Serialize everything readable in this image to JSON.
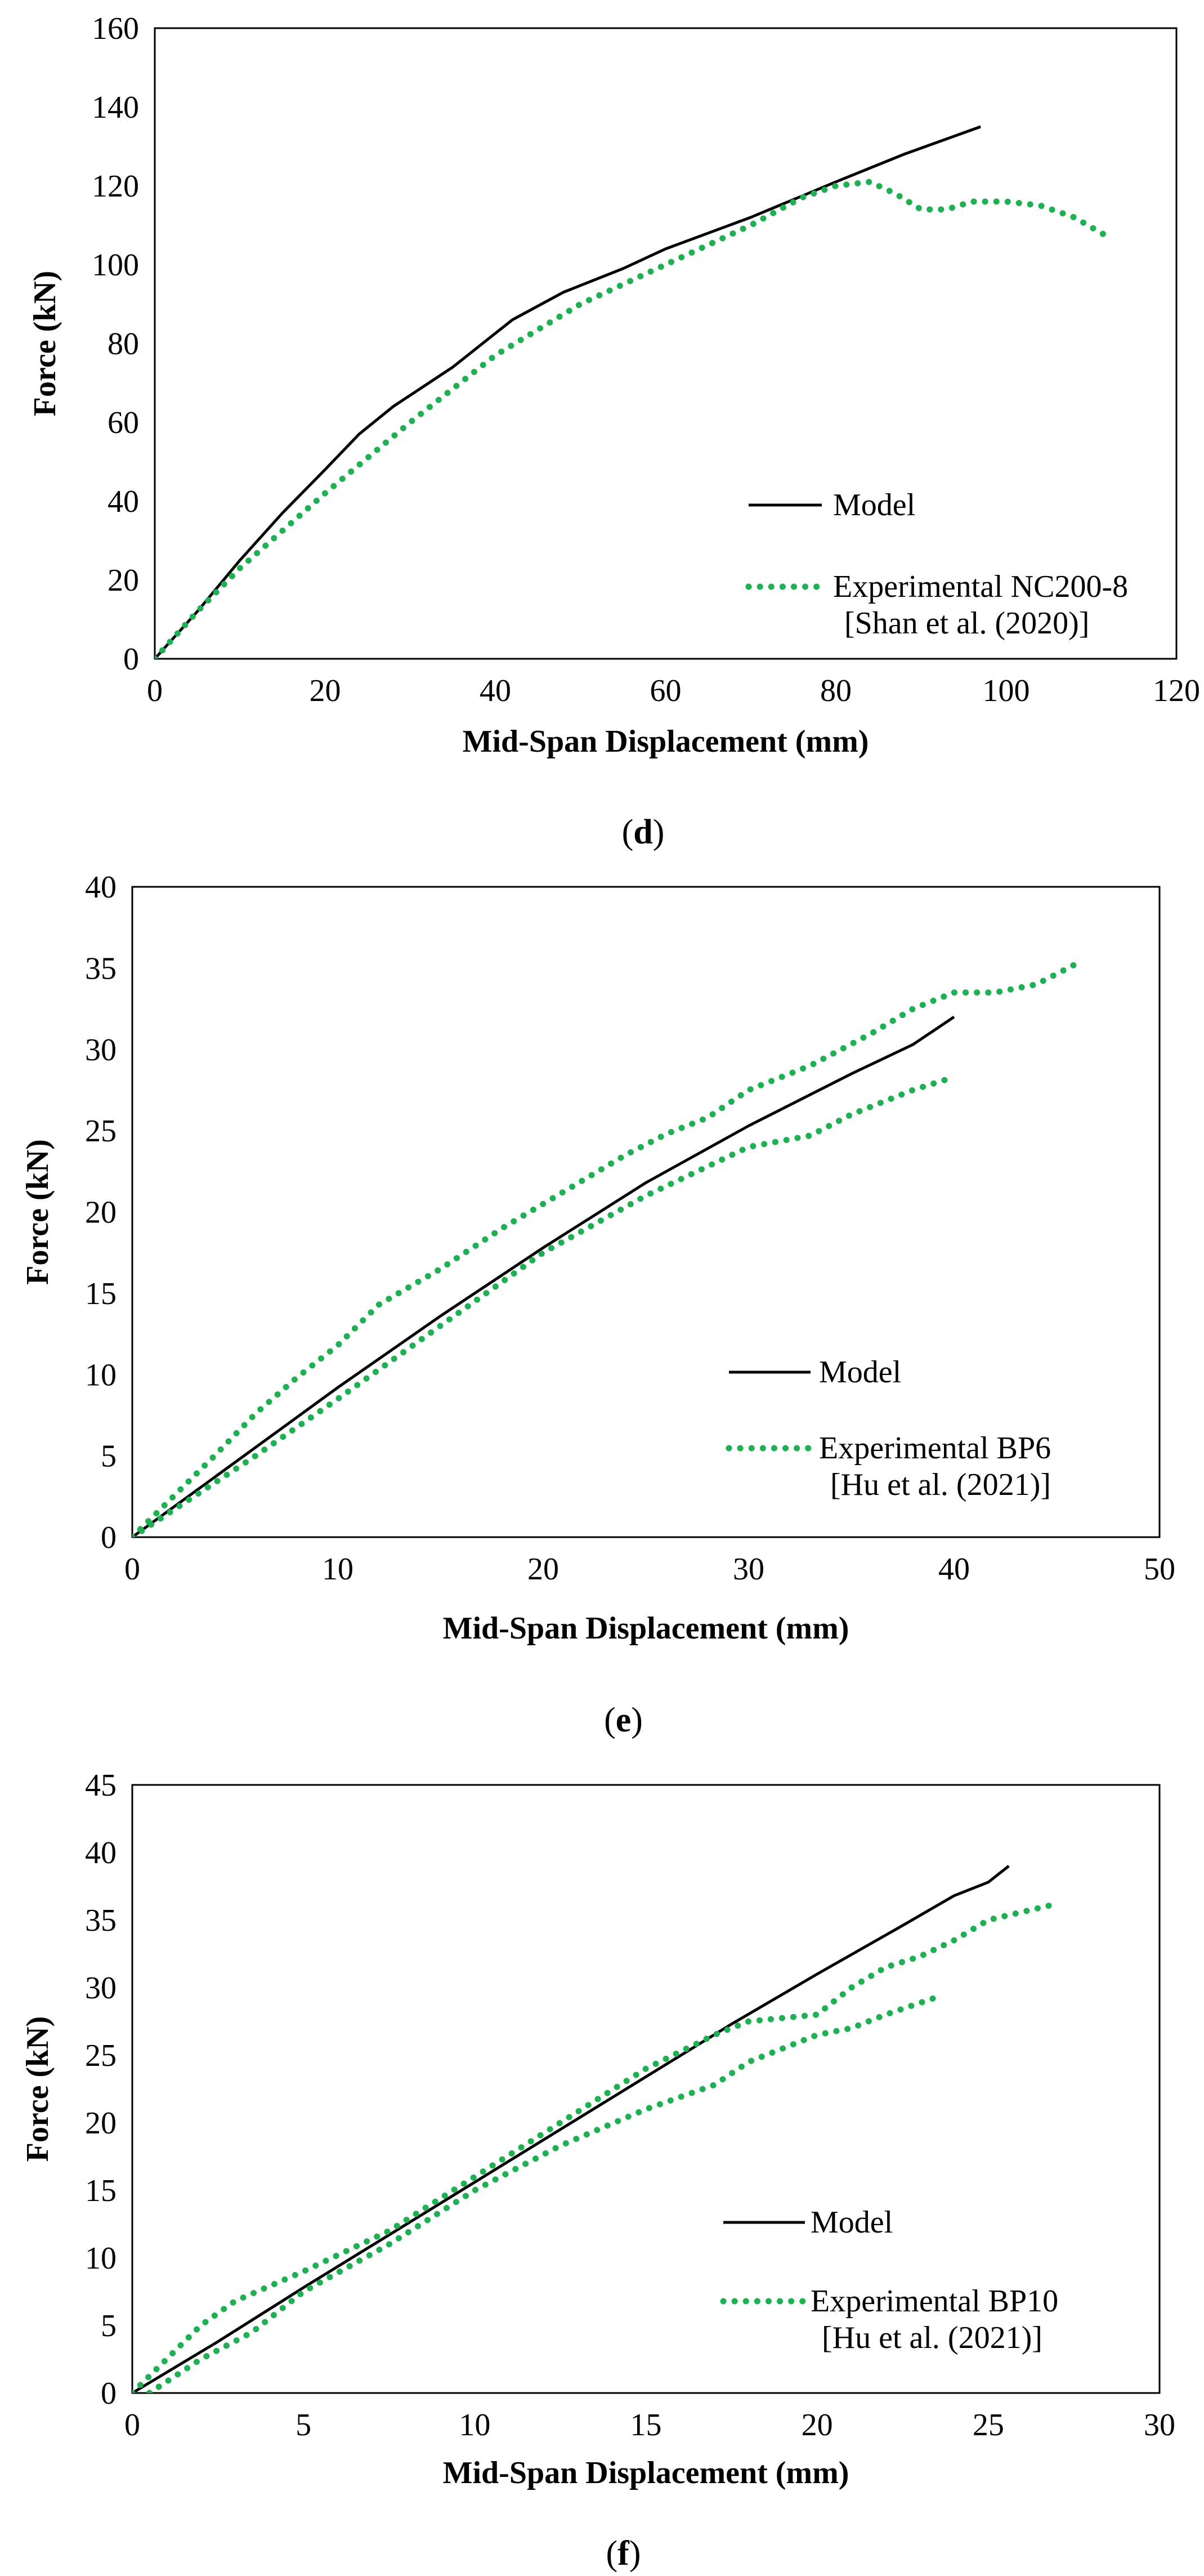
{
  "colors": {
    "model": "#000000",
    "experimental": "#1eb052",
    "frame": "#000000"
  },
  "chart_data": [
    {
      "type": "line",
      "caption_pre": "(",
      "caption_letter": "d",
      "caption_post": ")",
      "xlabel": "Mid-Span Displacement (mm)",
      "ylabel": "Force (kN)",
      "xlim": [
        0,
        120
      ],
      "ylim": [
        0,
        160
      ],
      "xticks": [
        0,
        20,
        40,
        60,
        80,
        100,
        120
      ],
      "yticks": [
        0,
        20,
        40,
        60,
        80,
        100,
        120,
        140,
        160
      ],
      "legend_placement": "lower-right",
      "series": [
        {
          "name": "Model",
          "legend_lines": [
            "Model"
          ],
          "style": "solid",
          "points": [
            [
              0,
              0
            ],
            [
              5,
              12
            ],
            [
              10,
              25
            ],
            [
              15,
              37
            ],
            [
              20,
              48
            ],
            [
              24,
              57
            ],
            [
              28,
              64
            ],
            [
              35,
              74
            ],
            [
              42,
              86
            ],
            [
              48,
              93
            ],
            [
              55,
              99
            ],
            [
              60,
              104
            ],
            [
              70,
              112
            ],
            [
              80,
              121
            ],
            [
              88,
              128
            ],
            [
              97,
              135
            ]
          ]
        },
        {
          "name": "Experimental NC200-8",
          "legend_lines": [
            "Experimental NC200-8",
            "[Shan et al. (2020)]"
          ],
          "style": "dotted",
          "points": [
            [
              0,
              0
            ],
            [
              5,
              12
            ],
            [
              10,
              23
            ],
            [
              20,
              42
            ],
            [
              30,
              60
            ],
            [
              40,
              77
            ],
            [
              50,
              90
            ],
            [
              60,
              100
            ],
            [
              70,
              110
            ],
            [
              76,
              117
            ],
            [
              80,
              120
            ],
            [
              84,
              121
            ],
            [
              87,
              118
            ],
            [
              90,
              114
            ],
            [
              93,
              114
            ],
            [
              96,
              116
            ],
            [
              100,
              116
            ],
            [
              104,
              115
            ],
            [
              108,
              112
            ],
            [
              112,
              107
            ]
          ]
        }
      ]
    },
    {
      "type": "line",
      "caption_pre": "(",
      "caption_letter": "e",
      "caption_post": ")",
      "xlabel": "Mid-Span Displacement (mm)",
      "ylabel": "Force (kN)",
      "xlim": [
        0,
        50
      ],
      "ylim": [
        0,
        40
      ],
      "xticks": [
        0,
        10,
        20,
        30,
        40,
        50
      ],
      "yticks": [
        0,
        5,
        10,
        15,
        20,
        25,
        30,
        35,
        40
      ],
      "legend_placement": "lower-right",
      "series": [
        {
          "name": "Model",
          "legend_lines": [
            "Model"
          ],
          "style": "solid",
          "points": [
            [
              0,
              0
            ],
            [
              5,
              4.6
            ],
            [
              10,
              9.2
            ],
            [
              15,
              13.6
            ],
            [
              20,
              17.8
            ],
            [
              25,
              21.8
            ],
            [
              30,
              25.3
            ],
            [
              35,
              28.5
            ],
            [
              38,
              30.3
            ],
            [
              40,
              32
            ]
          ]
        },
        {
          "name": "Experimental BP6",
          "legend_lines": [
            "Experimental BP6",
            "[Hu et al. (2021)]"
          ],
          "style": "dotted",
          "points": [
            [
              0,
              0
            ],
            [
              2,
              2.5
            ],
            [
              4,
              5
            ],
            [
              6,
              7.6
            ],
            [
              8,
              9.8
            ],
            [
              10,
              11.8
            ],
            [
              12,
              14.3
            ],
            [
              15,
              16.5
            ],
            [
              18,
              19
            ],
            [
              20,
              20.5
            ],
            [
              22,
              22
            ],
            [
              24,
              23.5
            ],
            [
              26,
              24.8
            ],
            [
              28,
              25.8
            ],
            [
              30,
              27.5
            ],
            [
              33,
              29
            ],
            [
              36,
              31
            ],
            [
              38,
              32.5
            ],
            [
              40,
              33.5
            ],
            [
              42,
              33.5
            ],
            [
              44,
              34
            ],
            [
              46,
              35.3
            ]
          ]
        },
        {
          "name": "Experimental BP6 (unloading)",
          "legend_lines": [],
          "style": "dotted",
          "points": [
            [
              0,
              0
            ],
            [
              3,
              2.5
            ],
            [
              6,
              5
            ],
            [
              10,
              8.5
            ],
            [
              15,
              13
            ],
            [
              20,
              17.5
            ],
            [
              25,
              21
            ],
            [
              28,
              22.8
            ],
            [
              30,
              24
            ],
            [
              33,
              24.7
            ],
            [
              35,
              26
            ],
            [
              38,
              27.5
            ],
            [
              40,
              28.3
            ]
          ]
        }
      ]
    },
    {
      "type": "line",
      "caption_pre": "(",
      "caption_letter": "f",
      "caption_post": ")",
      "xlabel": "Mid-Span Displacement (mm)",
      "ylabel": "Force (kN)",
      "xlim": [
        0,
        30
      ],
      "ylim": [
        0,
        45
      ],
      "xticks": [
        0,
        5,
        10,
        15,
        20,
        25,
        30
      ],
      "yticks": [
        0,
        5,
        10,
        15,
        20,
        25,
        30,
        35,
        40,
        45
      ],
      "legend_placement": "lower-right",
      "series": [
        {
          "name": "Model",
          "legend_lines": [
            "Model"
          ],
          "style": "solid",
          "points": [
            [
              0,
              0
            ],
            [
              2.5,
              3.8
            ],
            [
              5,
              7.8
            ],
            [
              7.5,
              11.7
            ],
            [
              10,
              15.6
            ],
            [
              12.5,
              19.5
            ],
            [
              15,
              23.4
            ],
            [
              17.5,
              27.3
            ],
            [
              20,
              31
            ],
            [
              22.5,
              34.6
            ],
            [
              24,
              36.8
            ],
            [
              25,
              37.8
            ],
            [
              25.6,
              39
            ]
          ]
        },
        {
          "name": "Experimental BP10",
          "legend_lines": [
            "Experimental BP10",
            "[Hu et al. (2021)]"
          ],
          "style": "dotted",
          "points": [
            [
              0,
              0
            ],
            [
              1,
              2.5
            ],
            [
              2,
              5
            ],
            [
              3,
              6.8
            ],
            [
              5,
              9
            ],
            [
              7.5,
              12
            ],
            [
              10,
              16
            ],
            [
              12.5,
              20
            ],
            [
              15,
              24
            ],
            [
              17,
              26.5
            ],
            [
              18,
              27.5
            ],
            [
              20,
              28
            ],
            [
              21,
              30
            ],
            [
              22,
              31.5
            ],
            [
              23,
              32.3
            ],
            [
              24,
              33.5
            ],
            [
              25,
              35
            ],
            [
              27,
              36.2
            ]
          ]
        },
        {
          "name": "Experimental BP10 (unloading)",
          "legend_lines": [],
          "style": "dotted",
          "points": [
            [
              0.5,
              0
            ],
            [
              2,
              2.5
            ],
            [
              3.5,
              4.5
            ],
            [
              5,
              7.5
            ],
            [
              7.5,
              11
            ],
            [
              10,
              15
            ],
            [
              12.5,
              18.3
            ],
            [
              15,
              21
            ],
            [
              17,
              22.8
            ],
            [
              18,
              24.5
            ],
            [
              19,
              25.5
            ],
            [
              20,
              26.5
            ],
            [
              21,
              27
            ],
            [
              22,
              28
            ],
            [
              23.5,
              29.3
            ]
          ]
        }
      ]
    }
  ]
}
